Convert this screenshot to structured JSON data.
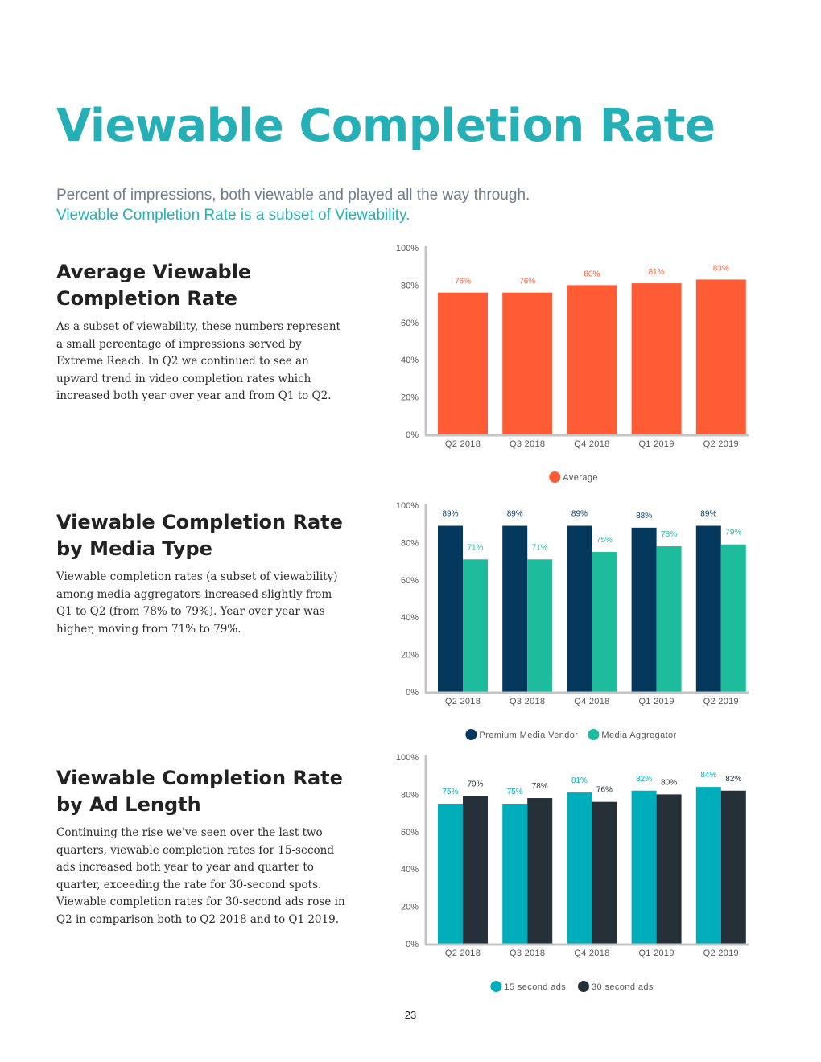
{
  "page": {
    "title": "Viewable Completion Rate",
    "intro_line1": "Percent of impressions, both viewable and played all the way through.",
    "intro_line2": "Viewable Completion Rate is a subset of Viewability.",
    "page_number": "23"
  },
  "sections": [
    {
      "heading_line1": "Average Viewable",
      "heading_line2": "Completion Rate",
      "body": "As a subset of viewability, these numbers represent a small percentage of impressions served by Extreme Reach. In Q2 we continued to see an upward trend in video completion rates which increased both year over year and from Q1 to Q2."
    },
    {
      "heading_line1": "Viewable Completion Rate",
      "heading_line2": "by Media Type",
      "body": "Viewable completion rates (a subset of viewability) among media aggregators increased slightly from Q1 to Q2 (from 78% to 79%). Year over year was higher, moving from 71% to 79%."
    },
    {
      "heading_line1": "Viewable Completion Rate",
      "heading_line2": "by Ad Length",
      "body": "Continuing the rise we've seen over the last two quarters, viewable completion rates for 15-second ads increased both year to year and quarter to quarter, exceeding the rate for 30-second spots. Viewable completion rates for 30-second ads rose in Q2 in comparison both to Q2 2018 and to Q1 2019."
    }
  ],
  "chart_data": [
    {
      "type": "bar",
      "categories": [
        "Q2 2018",
        "Q3 2018",
        "Q4 2018",
        "Q1 2019",
        "Q2 2019"
      ],
      "series": [
        {
          "name": "Average",
          "values": [
            76,
            76,
            80,
            81,
            83
          ],
          "labels": [
            "76%",
            "76%",
            "80%",
            "81%",
            "83%"
          ],
          "color": "#ff5c35",
          "label_color": "#ff5c35"
        }
      ],
      "yticks": [
        "0%",
        "20%",
        "40%",
        "60%",
        "80%",
        "100%"
      ],
      "ylim": [
        0,
        100
      ],
      "legend_position": "bottom"
    },
    {
      "type": "bar",
      "categories": [
        "Q2 2018",
        "Q3 2018",
        "Q4 2018",
        "Q1 2019",
        "Q2 2019"
      ],
      "series": [
        {
          "name": "Premium Media Vendor",
          "values": [
            89,
            89,
            89,
            88,
            89
          ],
          "labels": [
            "89%",
            "89%",
            "89%",
            "88%",
            "89%"
          ],
          "color": "#05385d",
          "label_color": "#05385d"
        },
        {
          "name": "Media Aggregator",
          "values": [
            71,
            71,
            75,
            78,
            79
          ],
          "labels": [
            "71%",
            "71%",
            "75%",
            "78%",
            "79%"
          ],
          "color": "#1dbc9d",
          "label_color": "#1dbc9d"
        }
      ],
      "yticks": [
        "0%",
        "20%",
        "40%",
        "60%",
        "80%",
        "100%"
      ],
      "ylim": [
        0,
        100
      ],
      "legend_position": "bottom"
    },
    {
      "type": "bar",
      "categories": [
        "Q2 2018",
        "Q3 2018",
        "Q4 2018",
        "Q1 2019",
        "Q2 2019"
      ],
      "series": [
        {
          "name": "15 second ads",
          "values": [
            75,
            75,
            81,
            82,
            84
          ],
          "labels": [
            "75%",
            "75%",
            "81%",
            "82%",
            "84%"
          ],
          "color": "#00aebb",
          "label_color": "#00aebb"
        },
        {
          "name": "30 second ads",
          "values": [
            79,
            78,
            76,
            80,
            82
          ],
          "labels": [
            "79%",
            "78%",
            "76%",
            "80%",
            "82%"
          ],
          "color": "#263038",
          "label_color": "#263038"
        }
      ],
      "yticks": [
        "0%",
        "20%",
        "40%",
        "60%",
        "80%",
        "100%"
      ],
      "ylim": [
        0,
        100
      ],
      "legend_position": "bottom"
    }
  ]
}
